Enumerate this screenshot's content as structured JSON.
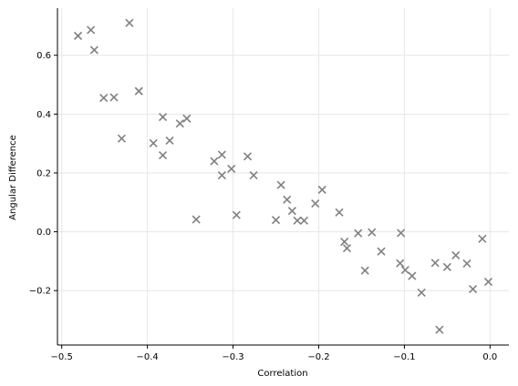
{
  "chart_data": {
    "type": "scatter",
    "title": "",
    "xlabel": "Correlation",
    "ylabel": "Angular Difference",
    "xlim": [
      -0.505,
      0.022
    ],
    "ylim": [
      -0.385,
      0.76
    ],
    "xticks": [
      -0.5,
      -0.4,
      -0.3,
      -0.2,
      -0.1,
      0.0
    ],
    "xtick_labels": [
      "−0.5",
      "−0.4",
      "−0.3",
      "−0.2",
      "−0.1",
      "0.0"
    ],
    "yticks": [
      -0.2,
      0.0,
      0.2,
      0.4,
      0.6
    ],
    "ytick_labels": [
      "−0.2",
      "0.0",
      "0.2",
      "0.4",
      "0.6"
    ],
    "grid": true,
    "marker": "x",
    "color": "#808080",
    "grid_color": "#e6e6e6",
    "points": [
      {
        "x": -0.481,
        "y": 0.666
      },
      {
        "x": -0.466,
        "y": 0.686
      },
      {
        "x": -0.462,
        "y": 0.618
      },
      {
        "x": -0.421,
        "y": 0.71
      },
      {
        "x": -0.451,
        "y": 0.455
      },
      {
        "x": -0.439,
        "y": 0.457
      },
      {
        "x": -0.41,
        "y": 0.478
      },
      {
        "x": -0.43,
        "y": 0.317
      },
      {
        "x": -0.393,
        "y": 0.301
      },
      {
        "x": -0.382,
        "y": 0.39
      },
      {
        "x": -0.382,
        "y": 0.26
      },
      {
        "x": -0.374,
        "y": 0.31
      },
      {
        "x": -0.362,
        "y": 0.368
      },
      {
        "x": -0.354,
        "y": 0.385
      },
      {
        "x": -0.343,
        "y": 0.042
      },
      {
        "x": -0.322,
        "y": 0.24
      },
      {
        "x": -0.313,
        "y": 0.262
      },
      {
        "x": -0.313,
        "y": 0.192
      },
      {
        "x": -0.302,
        "y": 0.214
      },
      {
        "x": -0.296,
        "y": 0.057
      },
      {
        "x": -0.283,
        "y": 0.256
      },
      {
        "x": -0.276,
        "y": 0.192
      },
      {
        "x": -0.25,
        "y": 0.04
      },
      {
        "x": -0.244,
        "y": 0.159
      },
      {
        "x": -0.237,
        "y": 0.109
      },
      {
        "x": -0.231,
        "y": 0.071
      },
      {
        "x": -0.225,
        "y": 0.038
      },
      {
        "x": -0.217,
        "y": 0.038
      },
      {
        "x": -0.204,
        "y": 0.096
      },
      {
        "x": -0.196,
        "y": 0.143
      },
      {
        "x": -0.176,
        "y": 0.066
      },
      {
        "x": -0.17,
        "y": -0.034
      },
      {
        "x": -0.167,
        "y": -0.056
      },
      {
        "x": -0.154,
        "y": -0.005
      },
      {
        "x": -0.146,
        "y": -0.132
      },
      {
        "x": -0.138,
        "y": -0.002
      },
      {
        "x": -0.127,
        "y": -0.067
      },
      {
        "x": -0.104,
        "y": -0.004
      },
      {
        "x": -0.105,
        "y": -0.107
      },
      {
        "x": -0.099,
        "y": -0.13
      },
      {
        "x": -0.091,
        "y": -0.15
      },
      {
        "x": -0.08,
        "y": -0.207
      },
      {
        "x": -0.064,
        "y": -0.106
      },
      {
        "x": -0.059,
        "y": -0.333
      },
      {
        "x": -0.05,
        "y": -0.12
      },
      {
        "x": -0.04,
        "y": -0.08
      },
      {
        "x": -0.027,
        "y": -0.108
      },
      {
        "x": -0.02,
        "y": -0.195
      },
      {
        "x": -0.009,
        "y": -0.024
      },
      {
        "x": -0.002,
        "y": -0.17
      }
    ]
  }
}
